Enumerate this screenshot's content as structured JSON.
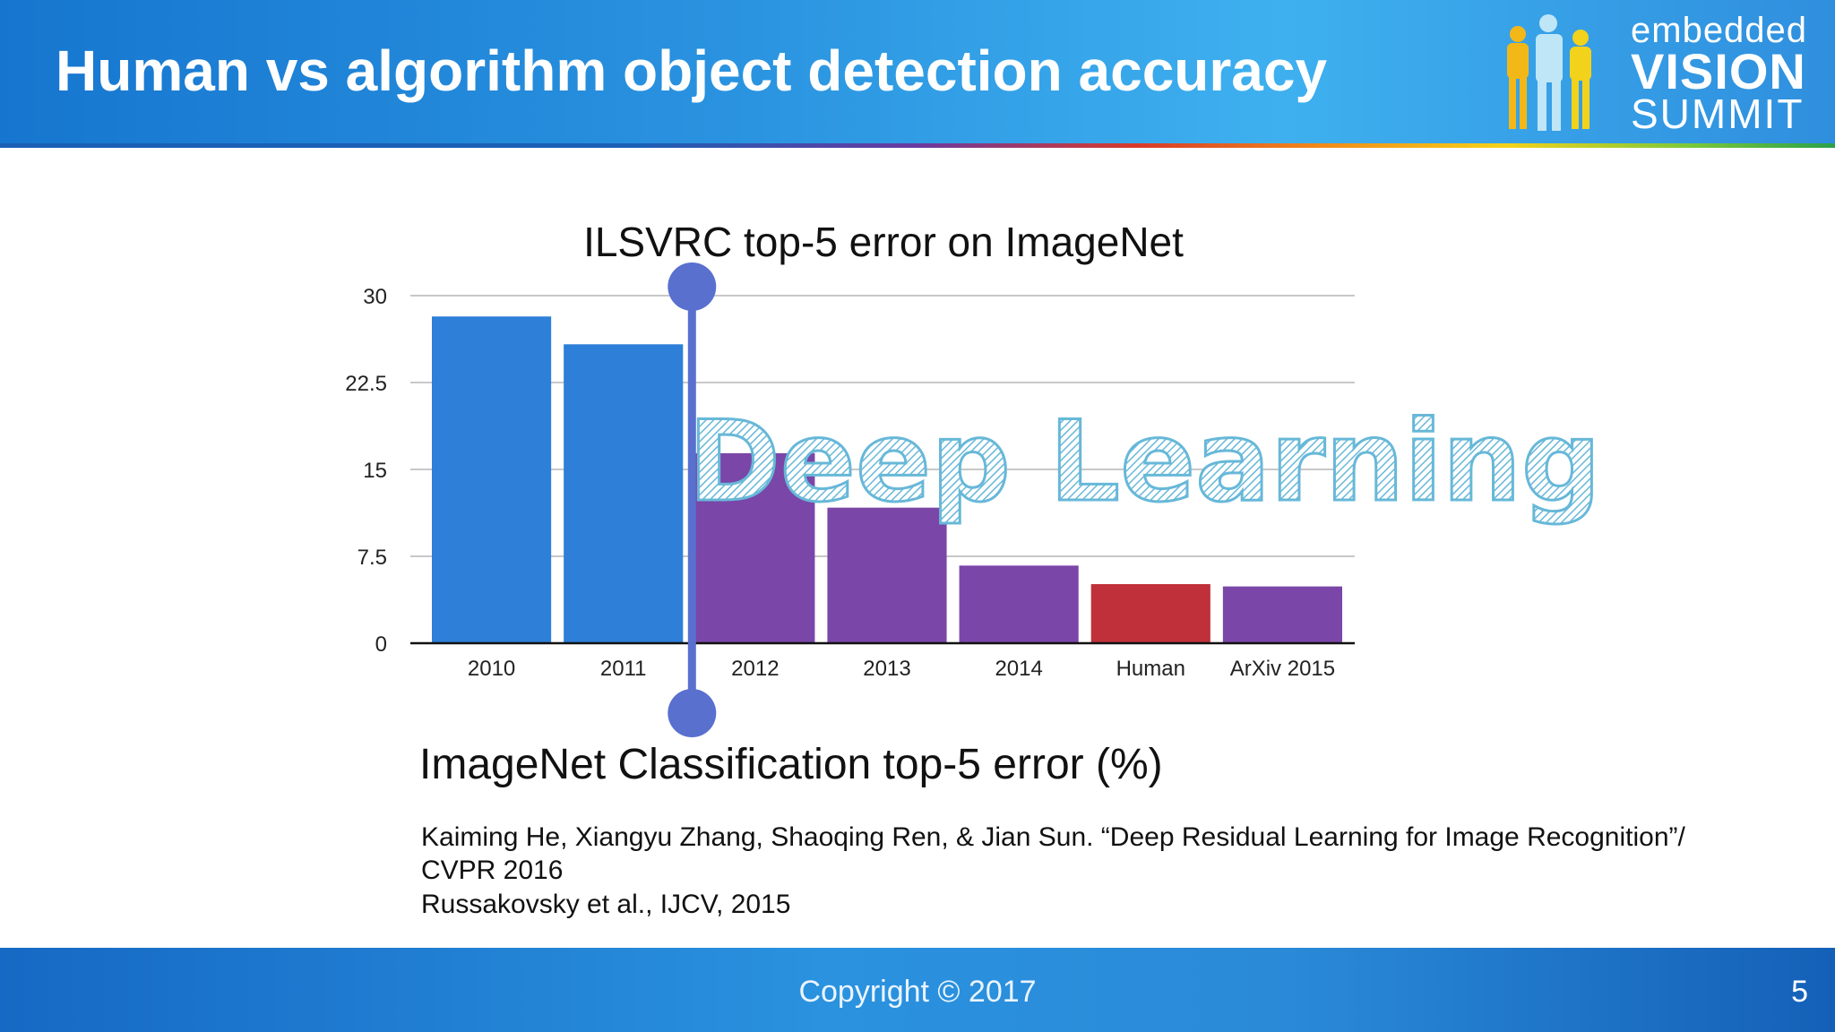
{
  "slide": {
    "title": "Human vs algorithm object detection accuracy",
    "caption": "ImageNet Classification top-5 error (%)",
    "references": [
      "Kaiming He, Xiangyu Zhang, Shaoqing Ren, & Jian Sun. “Deep Residual Learning for Image Recognition”/",
      "CVPR 2016",
      "Russakovsky et al., IJCV, 2015"
    ],
    "copyright": "Copyright © 2017",
    "page_number": "5",
    "overlay_text": "Deep Learning"
  },
  "logo": {
    "line1": "embedded",
    "line2": "VISION",
    "line3": "SUMMIT"
  },
  "chart_data": {
    "type": "bar",
    "title": "ILSVRC top-5 error on ImageNet",
    "categories": [
      "2010",
      "2011",
      "2012",
      "2013",
      "2014",
      "Human",
      "ArXiv 2015"
    ],
    "values": [
      28.2,
      25.8,
      16.4,
      11.7,
      6.7,
      5.1,
      4.9
    ],
    "bar_colors": [
      "#2d7fd8",
      "#2d7fd8",
      "#7a46a8",
      "#7a46a8",
      "#7a46a8",
      "#c0303a",
      "#7a46a8"
    ],
    "ylim": [
      0,
      30
    ],
    "yticks": [
      "30",
      "22.5",
      "15",
      "7.5",
      "0"
    ],
    "ytick_values": [
      30,
      22.5,
      15,
      7.5,
      0
    ],
    "grid": true,
    "divider_after_category": "2011",
    "divider_color": "#5a70cf",
    "overlay_color": "#67b8d8"
  }
}
